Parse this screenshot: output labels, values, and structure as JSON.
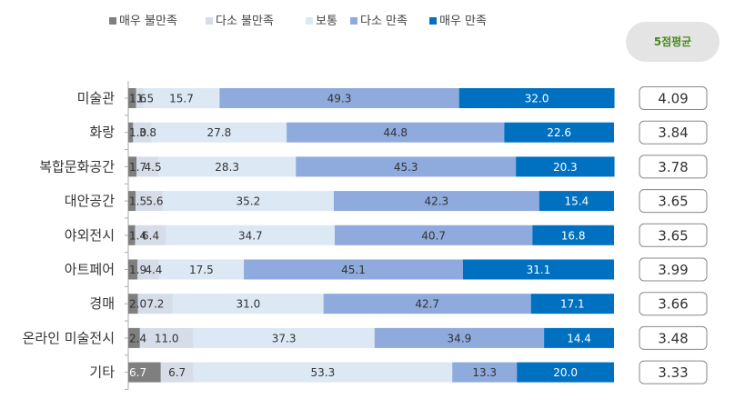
{
  "chart_data": {
    "type": "bar",
    "stacked": "percent",
    "orientation": "horizontal",
    "categories": [
      "미술관",
      "화랑",
      "복합문화공간",
      "대안공간",
      "야외전시",
      "아트페어",
      "경매",
      "온라인 미술전시",
      "기타"
    ],
    "series": [
      {
        "name": "매우 불만족",
        "color": "#7f7f7f",
        "values": [
          1.6,
          1.0,
          1.7,
          1.5,
          1.4,
          1.9,
          2.0,
          2.4,
          6.7
        ]
      },
      {
        "name": "다소 불만족",
        "color": "#d6dde8",
        "values": [
          1.5,
          3.8,
          4.5,
          5.6,
          6.4,
          4.4,
          7.2,
          11.0,
          6.7
        ]
      },
      {
        "name": "보통",
        "color": "#dde8f5",
        "values": [
          15.7,
          27.8,
          28.3,
          35.2,
          34.7,
          17.5,
          31.0,
          37.3,
          53.3
        ]
      },
      {
        "name": "다소 만족",
        "color": "#8faadc",
        "values": [
          49.3,
          44.8,
          45.3,
          42.3,
          40.7,
          45.1,
          42.7,
          34.9,
          13.3
        ]
      },
      {
        "name": "매우 만족",
        "color": "#0070c0",
        "values": [
          32.0,
          22.6,
          20.3,
          15.4,
          16.8,
          31.1,
          17.1,
          14.4,
          20.0
        ]
      }
    ],
    "segment_labels": [
      [
        "1.6",
        "1.5",
        "15.7",
        "49.3",
        "32.0"
      ],
      [
        "1.0",
        "3.8",
        "27.8",
        "44.8",
        "22.6"
      ],
      [
        "1.7",
        "4.5",
        "28.3",
        "45.3",
        "20.3"
      ],
      [
        "1.5",
        "5.6",
        "35.2",
        "42.3",
        "15.4"
      ],
      [
        "1.4",
        "6.4",
        "34.7",
        "40.7",
        "16.8"
      ],
      [
        "1.9",
        "4.4",
        "17.5",
        "45.1",
        "31.1"
      ],
      [
        "2.0",
        "7.2",
        "31.0",
        "42.7",
        "17.1"
      ],
      [
        "2.4",
        "11.0",
        "37.3",
        "34.9",
        "14.4"
      ],
      [
        "6.7",
        "6.7",
        "53.3",
        "13.3",
        "20.0"
      ]
    ],
    "averages_label": "5점평균",
    "averages": [
      "4.09",
      "3.84",
      "3.78",
      "3.65",
      "3.65",
      "3.99",
      "3.66",
      "3.48",
      "3.33"
    ],
    "legend_position": "top",
    "xlim": [
      0,
      100
    ]
  }
}
